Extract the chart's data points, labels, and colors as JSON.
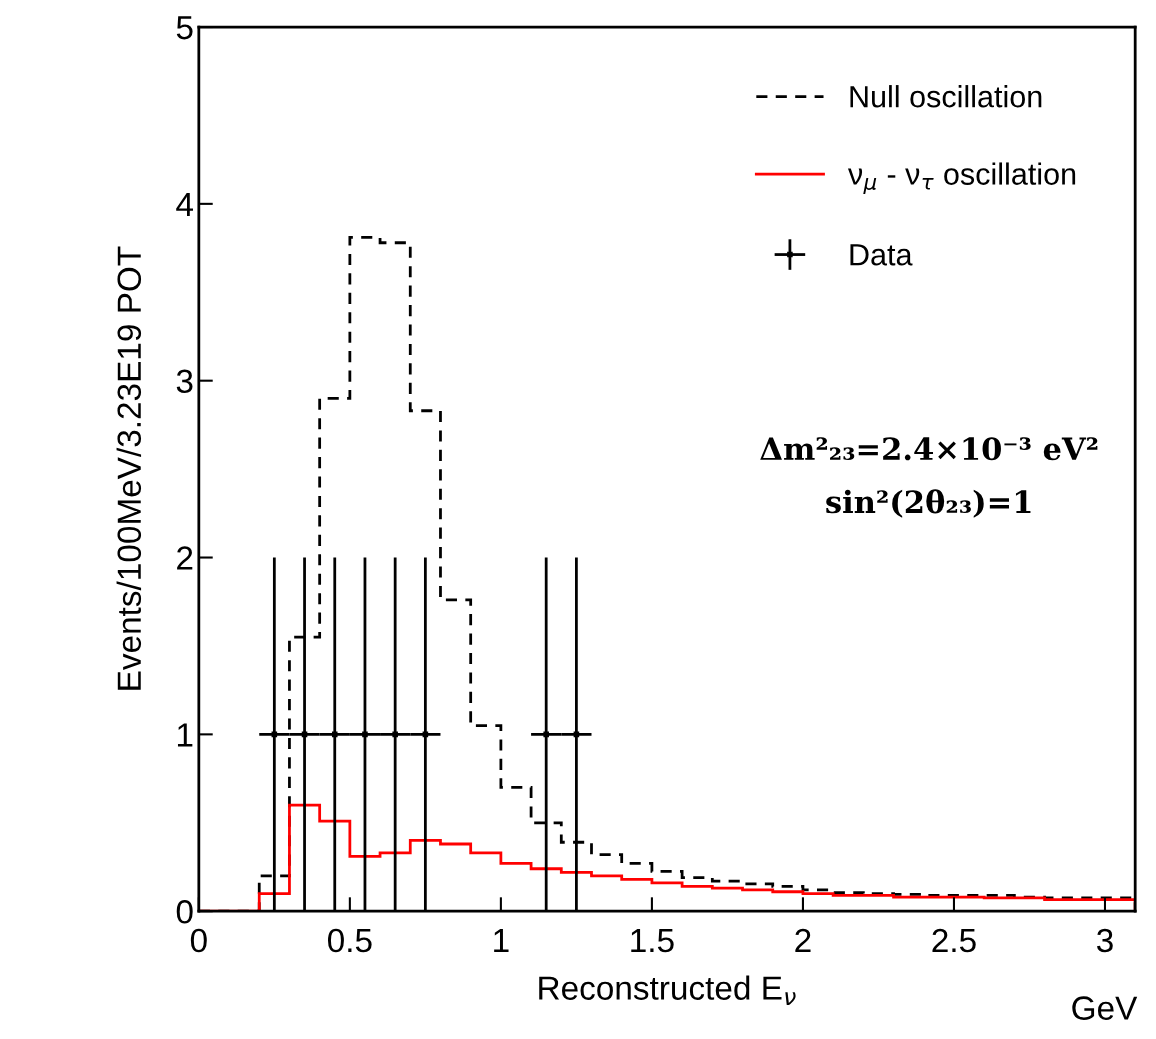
{
  "chart_data": {
    "type": "histogram",
    "xlabel": "Reconstructed E$_{ν}$",
    "ylabel": "Events/100MeV/3.23E19 POT",
    "bins": [
      0,
      0.1,
      0.2,
      0.3,
      0.4,
      0.5,
      0.6,
      0.7,
      0.8,
      0.9,
      1.0,
      1.1,
      1.2,
      1.3,
      1.4,
      1.5,
      1.6,
      1.7,
      1.8,
      1.9,
      2.0,
      2.1,
      2.2,
      2.3,
      2.4,
      2.5,
      2.6,
      2.7,
      2.8,
      2.9,
      3.0,
      3.1
    ],
    "series": [
      {
        "name": "Null oscillation",
        "color": "#000000",
        "line_style": "dashed",
        "values": [
          0,
          0,
          0.2,
          1.55,
          2.9,
          3.81,
          3.78,
          2.83,
          1.76,
          1.05,
          0.7,
          0.5,
          0.39,
          0.32,
          0.27,
          0.225,
          0.19,
          0.17,
          0.155,
          0.14,
          0.12,
          0.105,
          0.1,
          0.095,
          0.09,
          0.09,
          0.09,
          0.08,
          0.075,
          0.075,
          0.075
        ]
      },
      {
        "name": "ν$_{μ}$ - ν$_{τ}$ oscillation",
        "color": "#ff0000",
        "line_style": "solid",
        "values": [
          0,
          0,
          0.1,
          0.6,
          0.51,
          0.31,
          0.33,
          0.4,
          0.38,
          0.33,
          0.27,
          0.24,
          0.22,
          0.2,
          0.18,
          0.16,
          0.14,
          0.13,
          0.12,
          0.11,
          0.1,
          0.09,
          0.09,
          0.08,
          0.08,
          0.08,
          0.075,
          0.075,
          0.065,
          0.065,
          0.065
        ]
      },
      {
        "name": "Data",
        "type": "scatter",
        "color": "#000000",
        "marker": "square",
        "x": [
          0.25,
          0.35,
          0.45,
          0.55,
          0.65,
          0.75,
          1.15,
          1.25
        ],
        "values": [
          1,
          1,
          1,
          1,
          1,
          1,
          1,
          1
        ],
        "errors": [
          1,
          1,
          1,
          1,
          1,
          1,
          1,
          1
        ],
        "xerrors": [
          0.05,
          0.05,
          0.05,
          0.05,
          0.05,
          0.05,
          0.05,
          0.05
        ]
      }
    ],
    "annotations": [
      "Δm²₂₃=2.4×10⁻³ eV²",
      "sin²(2θ₂₃)=1",
      "GeV"
    ],
    "xlim": [
      0,
      3.1
    ],
    "ylim": [
      0,
      5
    ],
    "xticks": [
      0,
      0.5,
      1,
      1.5,
      2,
      2.5,
      3
    ],
    "yticks": [
      0,
      1,
      2,
      3,
      4,
      5
    ],
    "grid": false,
    "legend": "top right"
  }
}
